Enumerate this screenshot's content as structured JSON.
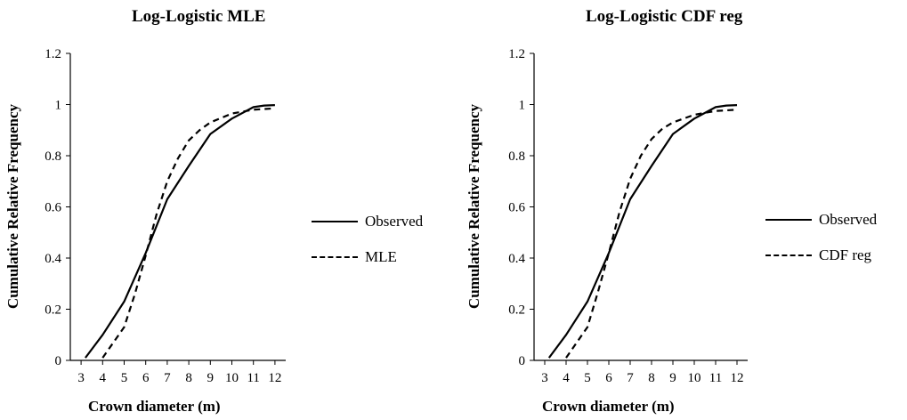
{
  "chart_data": [
    {
      "type": "line",
      "title": "Log-Logistic MLE",
      "xlabel": "Crown diameter (m)",
      "ylabel": "Cumulative Relative Frequency",
      "x_ticks": [
        "3",
        "4",
        "5",
        "6",
        "7",
        "8",
        "9",
        "10",
        "11",
        "12"
      ],
      "y_ticks": [
        "0",
        "0.2",
        "0.4",
        "0.6",
        "0.8",
        "1",
        "1.2"
      ],
      "xlim": [
        2.5,
        12.5
      ],
      "ylim": [
        0,
        1.2
      ],
      "legend_position": "right",
      "grid": false,
      "series": [
        {
          "name": "Observed",
          "style": "solid",
          "x": [
            3.2,
            4,
            5,
            6,
            7,
            8,
            9,
            10,
            11,
            11.5,
            12
          ],
          "y": [
            0.01,
            0.1,
            0.23,
            0.42,
            0.63,
            0.76,
            0.885,
            0.945,
            0.99,
            0.996,
            0.998
          ]
        },
        {
          "name": "MLE",
          "style": "dashed",
          "x": [
            4,
            4.5,
            5,
            5.5,
            6,
            6.5,
            7,
            7.5,
            8,
            8.5,
            9,
            10,
            11,
            12
          ],
          "y": [
            0.01,
            0.07,
            0.13,
            0.26,
            0.41,
            0.57,
            0.7,
            0.79,
            0.86,
            0.9,
            0.93,
            0.965,
            0.98,
            0.985
          ]
        }
      ]
    },
    {
      "type": "line",
      "title": "Log-Logistic CDF reg",
      "xlabel": "Crown diameter (m)",
      "ylabel": "Cumulative Relative Frequency",
      "x_ticks": [
        "3",
        "4",
        "5",
        "6",
        "7",
        "8",
        "9",
        "10",
        "11",
        "12"
      ],
      "y_ticks": [
        "0",
        "0.2",
        "0.4",
        "0.6",
        "0.8",
        "1",
        "1.2"
      ],
      "xlim": [
        2.5,
        12.5
      ],
      "ylim": [
        0,
        1.2
      ],
      "legend_position": "right",
      "grid": false,
      "series": [
        {
          "name": "Observed",
          "style": "solid",
          "x": [
            3.2,
            4,
            5,
            6,
            7,
            8,
            9,
            10,
            11,
            11.5,
            12
          ],
          "y": [
            0.01,
            0.1,
            0.23,
            0.42,
            0.63,
            0.76,
            0.885,
            0.945,
            0.99,
            0.996,
            0.998
          ]
        },
        {
          "name": "CDF reg",
          "style": "dashed",
          "x": [
            4,
            4.5,
            5,
            5.5,
            6,
            6.5,
            7,
            7.5,
            8,
            8.5,
            9,
            10,
            11,
            12
          ],
          "y": [
            0.01,
            0.07,
            0.13,
            0.27,
            0.42,
            0.58,
            0.71,
            0.8,
            0.865,
            0.905,
            0.93,
            0.96,
            0.975,
            0.98
          ]
        }
      ]
    }
  ]
}
